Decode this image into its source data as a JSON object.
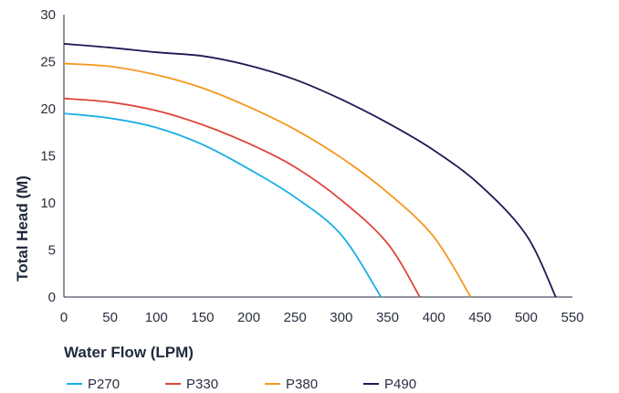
{
  "chart_data": {
    "type": "line",
    "xlabel": "Water Flow (LPM)",
    "ylabel": "Total Head (M)",
    "xlim": [
      0,
      550
    ],
    "ylim": [
      0,
      30
    ],
    "xticks": [
      "0",
      "50",
      "100",
      "150",
      "200",
      "250",
      "300",
      "350",
      "400",
      "450",
      "500",
      "550"
    ],
    "yticks": [
      "0",
      "5",
      "10",
      "15",
      "20",
      "25",
      "30"
    ],
    "grid": false,
    "legend_position": "bottom-left",
    "series": [
      {
        "name": "P270",
        "color": "#19aee6",
        "points": [
          [
            0,
            19.5
          ],
          [
            50,
            19.0
          ],
          [
            100,
            18.0
          ],
          [
            150,
            16.2
          ],
          [
            200,
            13.6
          ],
          [
            250,
            10.6
          ],
          [
            300,
            6.6
          ],
          [
            343,
            0
          ]
        ]
      },
      {
        "name": "P330",
        "color": "#e0453a",
        "points": [
          [
            0,
            21.1
          ],
          [
            50,
            20.7
          ],
          [
            100,
            19.8
          ],
          [
            150,
            18.3
          ],
          [
            200,
            16.3
          ],
          [
            250,
            13.8
          ],
          [
            300,
            10.3
          ],
          [
            350,
            5.7
          ],
          [
            385,
            0
          ]
        ]
      },
      {
        "name": "P380",
        "color": "#f5981e",
        "points": [
          [
            0,
            24.8
          ],
          [
            50,
            24.5
          ],
          [
            100,
            23.6
          ],
          [
            150,
            22.2
          ],
          [
            200,
            20.2
          ],
          [
            250,
            17.8
          ],
          [
            300,
            14.8
          ],
          [
            350,
            11.1
          ],
          [
            400,
            6.4
          ],
          [
            440,
            0
          ]
        ]
      },
      {
        "name": "P490",
        "color": "#1c1a54",
        "points": [
          [
            0,
            26.9
          ],
          [
            50,
            26.5
          ],
          [
            100,
            26.0
          ],
          [
            150,
            25.6
          ],
          [
            200,
            24.6
          ],
          [
            250,
            23.1
          ],
          [
            300,
            21.0
          ],
          [
            350,
            18.5
          ],
          [
            400,
            15.6
          ],
          [
            450,
            11.9
          ],
          [
            500,
            6.6
          ],
          [
            532,
            0
          ]
        ]
      }
    ]
  }
}
